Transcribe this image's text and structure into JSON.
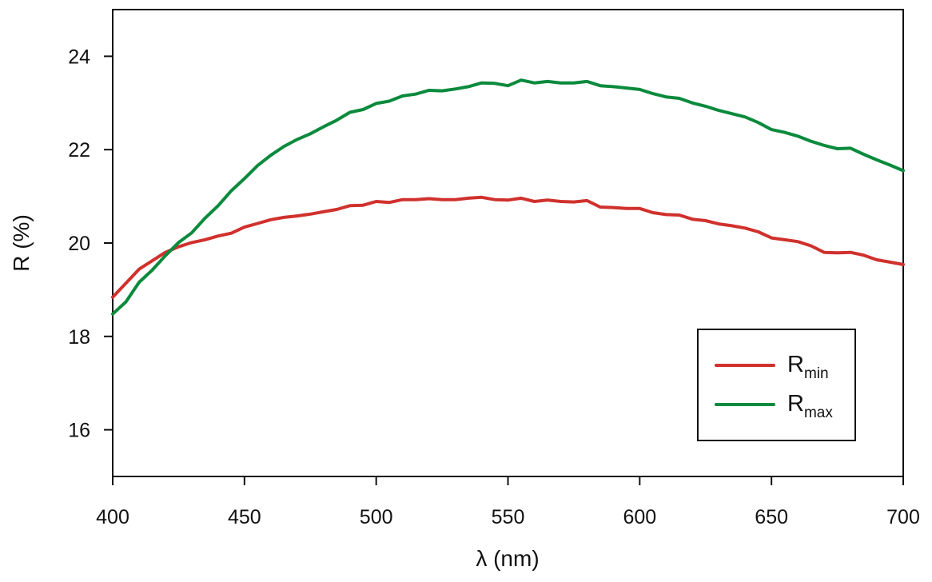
{
  "chart_data": {
    "type": "line",
    "title": "",
    "xlabel": "λ (nm)",
    "ylabel": "R (%)",
    "xlim": [
      400,
      700
    ],
    "ylim": [
      15,
      25
    ],
    "xticks": [
      400,
      450,
      500,
      550,
      600,
      650,
      700
    ],
    "yticks": [
      16,
      18,
      20,
      22,
      24
    ],
    "grid": false,
    "legend": {
      "placement": "bottom-right"
    },
    "x": [
      400,
      405,
      410,
      415,
      420,
      425,
      430,
      435,
      440,
      445,
      450,
      455,
      460,
      465,
      470,
      475,
      480,
      485,
      490,
      495,
      500,
      505,
      510,
      515,
      520,
      525,
      530,
      535,
      540,
      545,
      550,
      555,
      560,
      565,
      570,
      575,
      580,
      585,
      590,
      595,
      600,
      605,
      610,
      615,
      620,
      625,
      630,
      635,
      640,
      645,
      650,
      655,
      660,
      665,
      670,
      675,
      680,
      685,
      690,
      695,
      700
    ],
    "series": [
      {
        "name": "R",
        "sub": "min",
        "color": "#d0312d",
        "values": [
          18.84,
          19.14,
          19.44,
          19.62,
          19.8,
          19.92,
          20.01,
          20.07,
          20.15,
          20.21,
          20.34,
          20.42,
          20.5,
          20.55,
          20.58,
          20.62,
          20.67,
          20.72,
          20.8,
          20.81,
          20.89,
          20.87,
          20.93,
          20.93,
          20.95,
          20.93,
          20.93,
          20.96,
          20.98,
          20.93,
          20.92,
          20.96,
          20.89,
          20.92,
          20.89,
          20.88,
          20.91,
          20.77,
          20.76,
          20.74,
          20.74,
          20.65,
          20.61,
          20.6,
          20.51,
          20.48,
          20.41,
          20.37,
          20.32,
          20.24,
          20.11,
          20.07,
          20.03,
          19.94,
          19.8,
          19.79,
          19.8,
          19.74,
          19.64,
          19.59,
          19.54
        ]
      },
      {
        "name": "R",
        "sub": "max",
        "color": "#0a8a3c",
        "values": [
          18.48,
          18.74,
          19.16,
          19.42,
          19.73,
          20.01,
          20.22,
          20.53,
          20.8,
          21.12,
          21.38,
          21.66,
          21.88,
          22.07,
          22.22,
          22.34,
          22.49,
          22.63,
          22.8,
          22.86,
          22.99,
          23.04,
          23.15,
          23.19,
          23.27,
          23.26,
          23.3,
          23.35,
          23.43,
          23.42,
          23.37,
          23.49,
          23.43,
          23.46,
          23.43,
          23.43,
          23.46,
          23.37,
          23.35,
          23.32,
          23.29,
          23.2,
          23.13,
          23.1,
          23.0,
          22.93,
          22.84,
          22.77,
          22.7,
          22.58,
          22.43,
          22.37,
          22.29,
          22.18,
          22.09,
          22.02,
          22.03,
          21.9,
          21.78,
          21.67,
          21.55
        ]
      }
    ]
  }
}
